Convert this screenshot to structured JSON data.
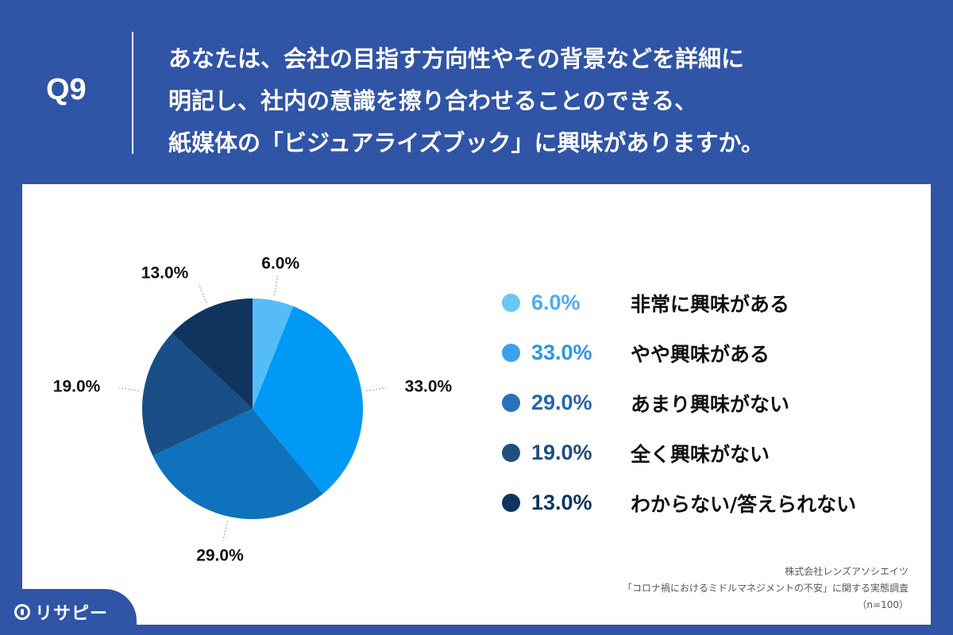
{
  "header": {
    "q_label": "Q9",
    "question_lines": [
      "あなたは、会社の目指す方向性やその背景などを詳細に",
      "明記し、社内の意識を擦り合わせることのできる、",
      "紙媒体の「ビジュアライズブック」に興味がありますか。"
    ]
  },
  "chart_data": {
    "type": "pie",
    "categories": [
      "非常に興味がある",
      "やや興味がある",
      "あまり興味がない",
      "全く興味がない",
      "わからない/答えられない"
    ],
    "values": [
      6.0,
      33.0,
      29.0,
      19.0,
      13.0
    ],
    "labels": [
      "6.0%",
      "33.0%",
      "29.0%",
      "19.0%",
      "13.0%"
    ],
    "colors": [
      "#56bcf8",
      "#0099f5",
      "#0f72bc",
      "#194f86",
      "#0f355f"
    ],
    "legend": "right",
    "start_angle": "12 o'clock, clockwise"
  },
  "legend_colors": [
    "#6cc4f7",
    "#39a1f0",
    "#2b6fbc",
    "#204f80",
    "#0f355f"
  ],
  "legend_text_colors": [
    "#4aaef0",
    "#2b95ea",
    "#2563ad",
    "#1d4d80",
    "#0f355f"
  ],
  "source": {
    "company": "株式会社レンズアソシエイツ",
    "survey": "「コロナ禍におけるミドルマネジメントの不安」に関する実態調査",
    "n": "（n=100）"
  },
  "logo": {
    "text": "リサピー"
  }
}
